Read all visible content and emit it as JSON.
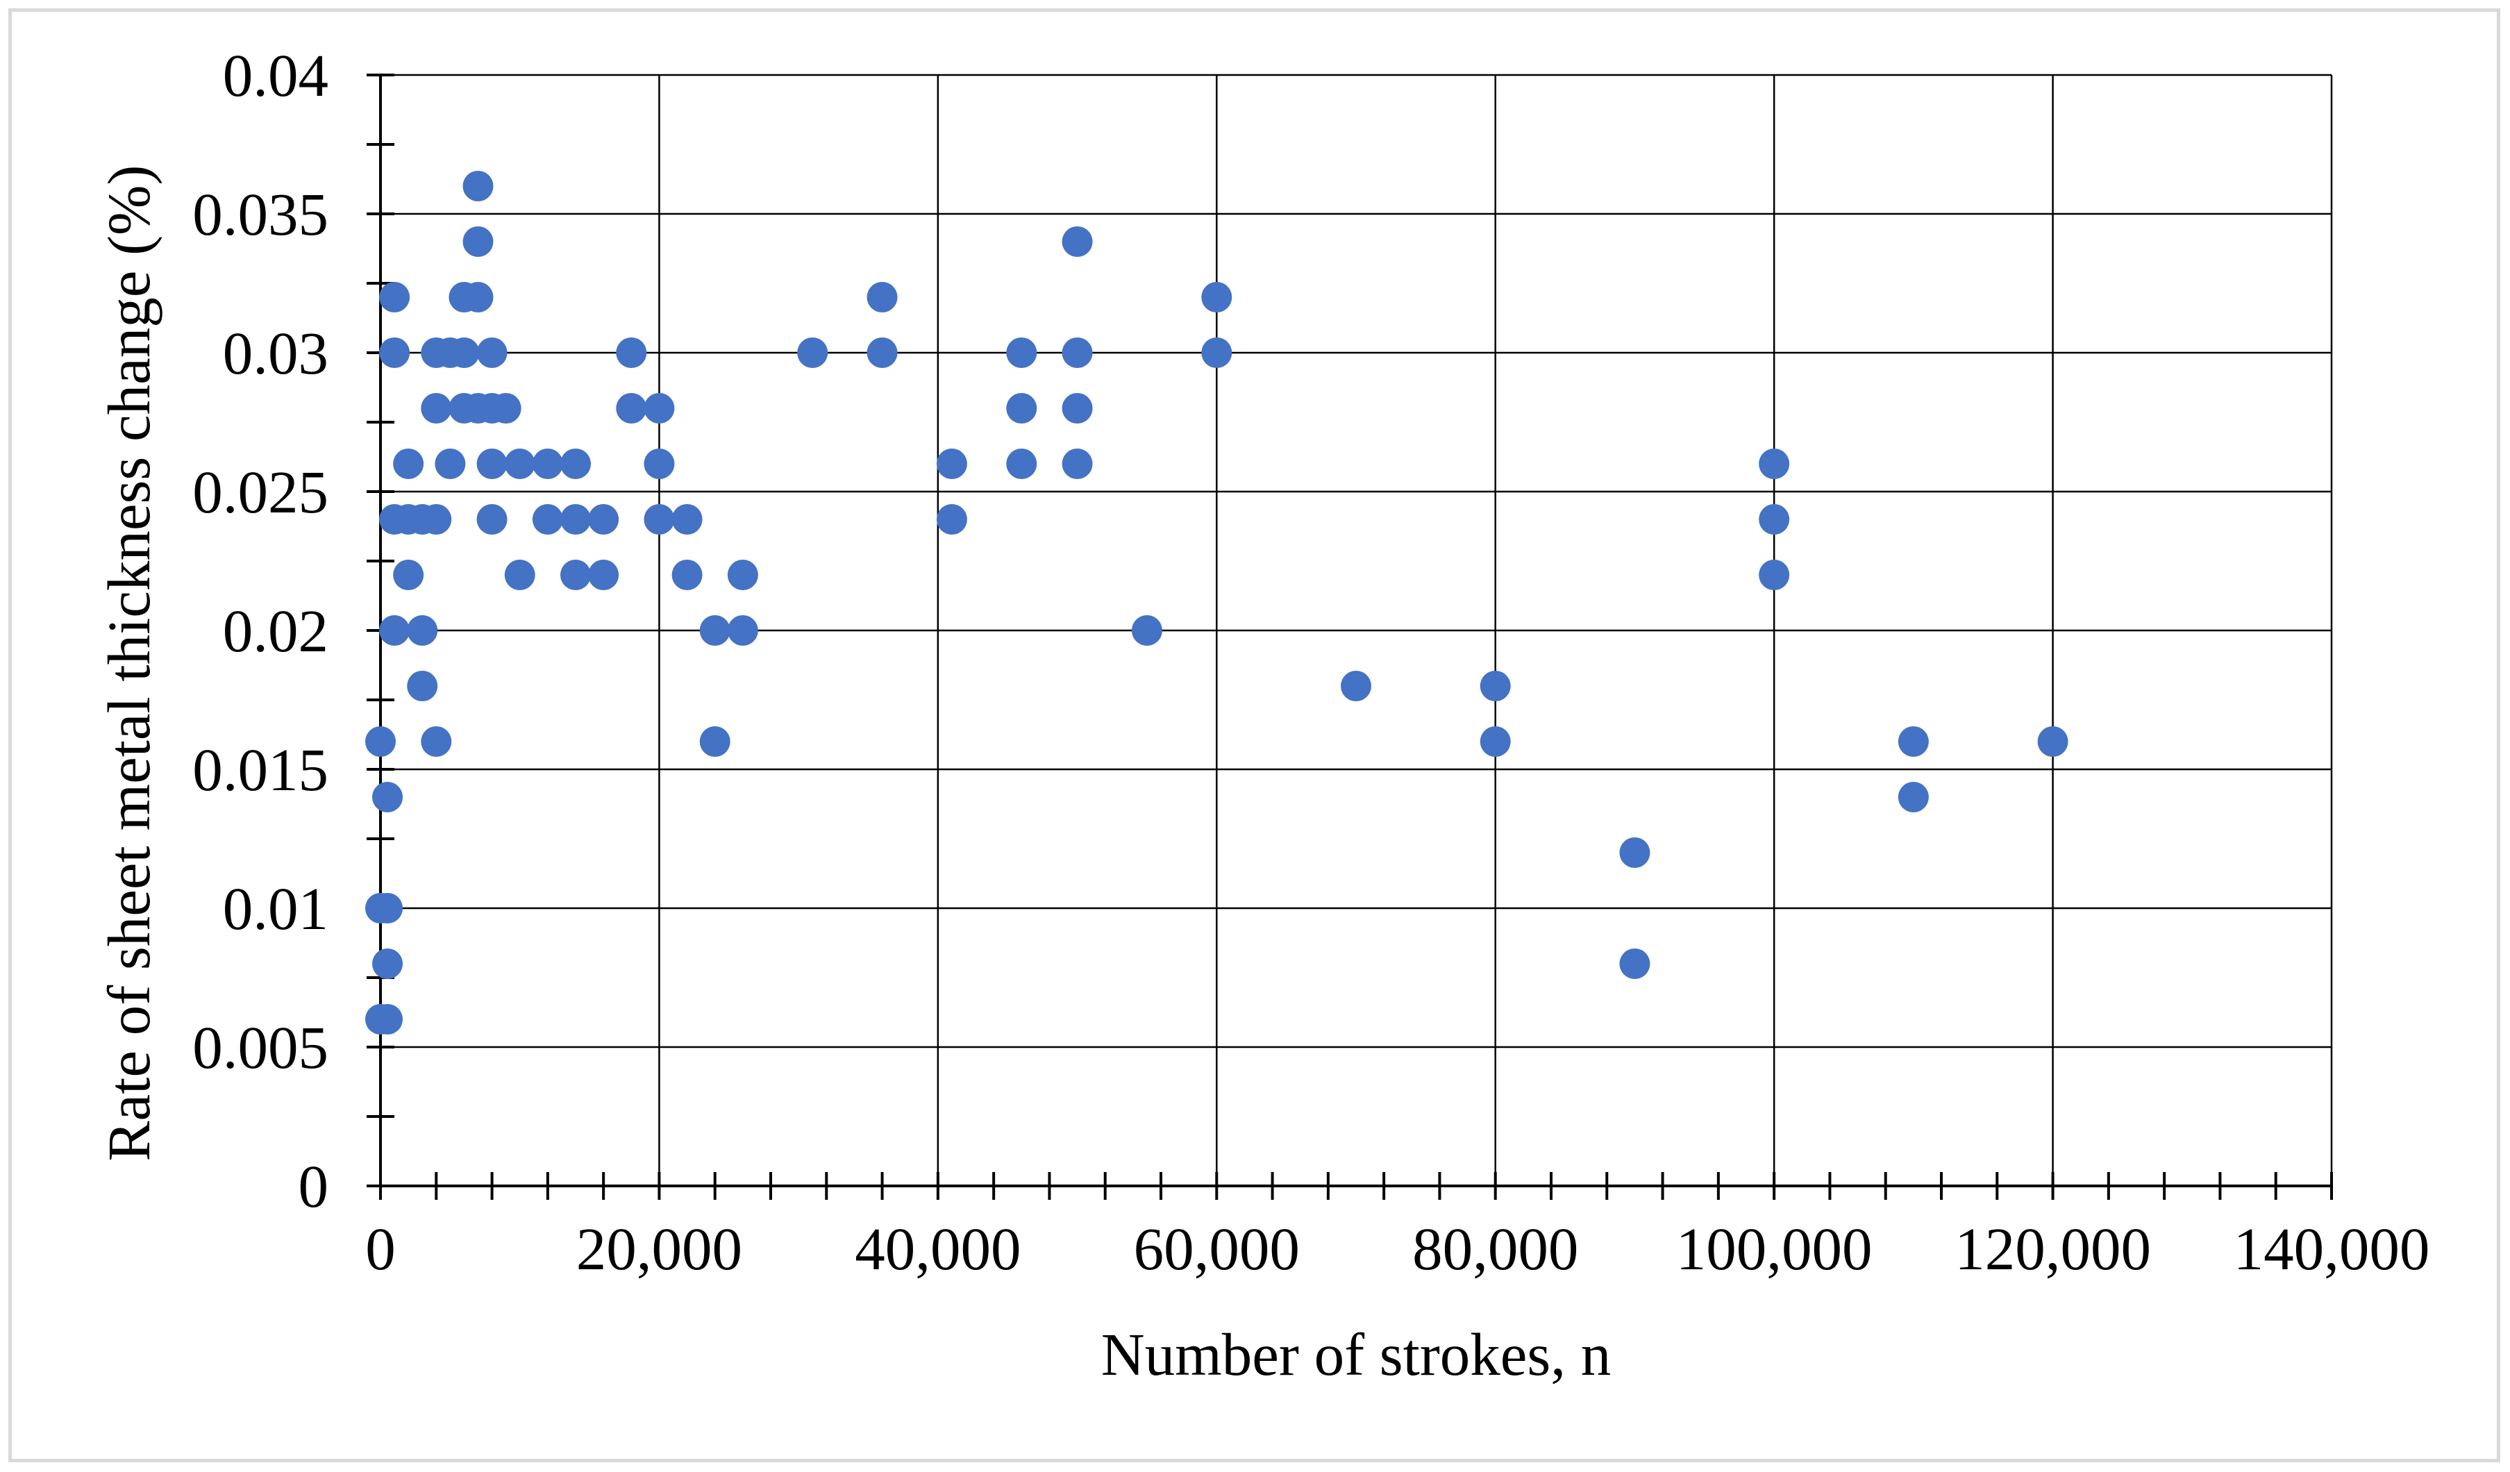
{
  "chart_data": {
    "type": "scatter",
    "title": "",
    "xlabel": "Number of strokes, n",
    "ylabel": "Rate of sheet metal thickness change (%)",
    "xlim": [
      0,
      140000
    ],
    "ylim": [
      0,
      0.04
    ],
    "x_ticks": [
      "0",
      "20,000",
      "40,000",
      "60,000",
      "80,000",
      "100,000",
      "120,000",
      "140,000"
    ],
    "y_ticks": [
      "0",
      "0.005",
      "0.01",
      "0.015",
      "0.02",
      "0.025",
      "0.03",
      "0.035",
      "0.04"
    ],
    "grid": true,
    "legend": "none",
    "marker_color": "#4472c4",
    "series": [
      {
        "points": [
          [
            0,
            0.016
          ],
          [
            0,
            0.01
          ],
          [
            0,
            0.006
          ],
          [
            500,
            0.014
          ],
          [
            500,
            0.01
          ],
          [
            500,
            0.008
          ],
          [
            500,
            0.006
          ],
          [
            1000,
            0.032
          ],
          [
            1000,
            0.03
          ],
          [
            1000,
            0.024
          ],
          [
            1000,
            0.02
          ],
          [
            2000,
            0.026
          ],
          [
            2000,
            0.024
          ],
          [
            2000,
            0.022
          ],
          [
            3000,
            0.024
          ],
          [
            3000,
            0.02
          ],
          [
            3000,
            0.018
          ],
          [
            4000,
            0.03
          ],
          [
            4000,
            0.028
          ],
          [
            4000,
            0.024
          ],
          [
            4000,
            0.016
          ],
          [
            5000,
            0.03
          ],
          [
            5000,
            0.026
          ],
          [
            6000,
            0.032
          ],
          [
            6000,
            0.03
          ],
          [
            6000,
            0.028
          ],
          [
            7000,
            0.036
          ],
          [
            7000,
            0.034
          ],
          [
            7000,
            0.032
          ],
          [
            7000,
            0.028
          ],
          [
            8000,
            0.03
          ],
          [
            8000,
            0.028
          ],
          [
            8000,
            0.026
          ],
          [
            8000,
            0.024
          ],
          [
            9000,
            0.028
          ],
          [
            10000,
            0.026
          ],
          [
            10000,
            0.022
          ],
          [
            12000,
            0.026
          ],
          [
            12000,
            0.024
          ],
          [
            14000,
            0.026
          ],
          [
            14000,
            0.024
          ],
          [
            14000,
            0.022
          ],
          [
            16000,
            0.024
          ],
          [
            16000,
            0.022
          ],
          [
            18000,
            0.03
          ],
          [
            18000,
            0.028
          ],
          [
            20000,
            0.028
          ],
          [
            20000,
            0.026
          ],
          [
            20000,
            0.024
          ],
          [
            22000,
            0.024
          ],
          [
            22000,
            0.022
          ],
          [
            24000,
            0.02
          ],
          [
            24000,
            0.016
          ],
          [
            26000,
            0.022
          ],
          [
            26000,
            0.02
          ],
          [
            31000,
            0.03
          ],
          [
            36000,
            0.032
          ],
          [
            36000,
            0.03
          ],
          [
            41000,
            0.026
          ],
          [
            41000,
            0.024
          ],
          [
            46000,
            0.03
          ],
          [
            46000,
            0.028
          ],
          [
            46000,
            0.026
          ],
          [
            50000,
            0.034
          ],
          [
            50000,
            0.03
          ],
          [
            50000,
            0.028
          ],
          [
            50000,
            0.026
          ],
          [
            55000,
            0.02
          ],
          [
            60000,
            0.032
          ],
          [
            60000,
            0.03
          ],
          [
            70000,
            0.018
          ],
          [
            80000,
            0.018
          ],
          [
            80000,
            0.016
          ],
          [
            90000,
            0.012
          ],
          [
            90000,
            0.008
          ],
          [
            100000,
            0.026
          ],
          [
            100000,
            0.024
          ],
          [
            100000,
            0.022
          ],
          [
            110000,
            0.016
          ],
          [
            110000,
            0.014
          ],
          [
            120000,
            0.016
          ]
        ]
      }
    ]
  }
}
